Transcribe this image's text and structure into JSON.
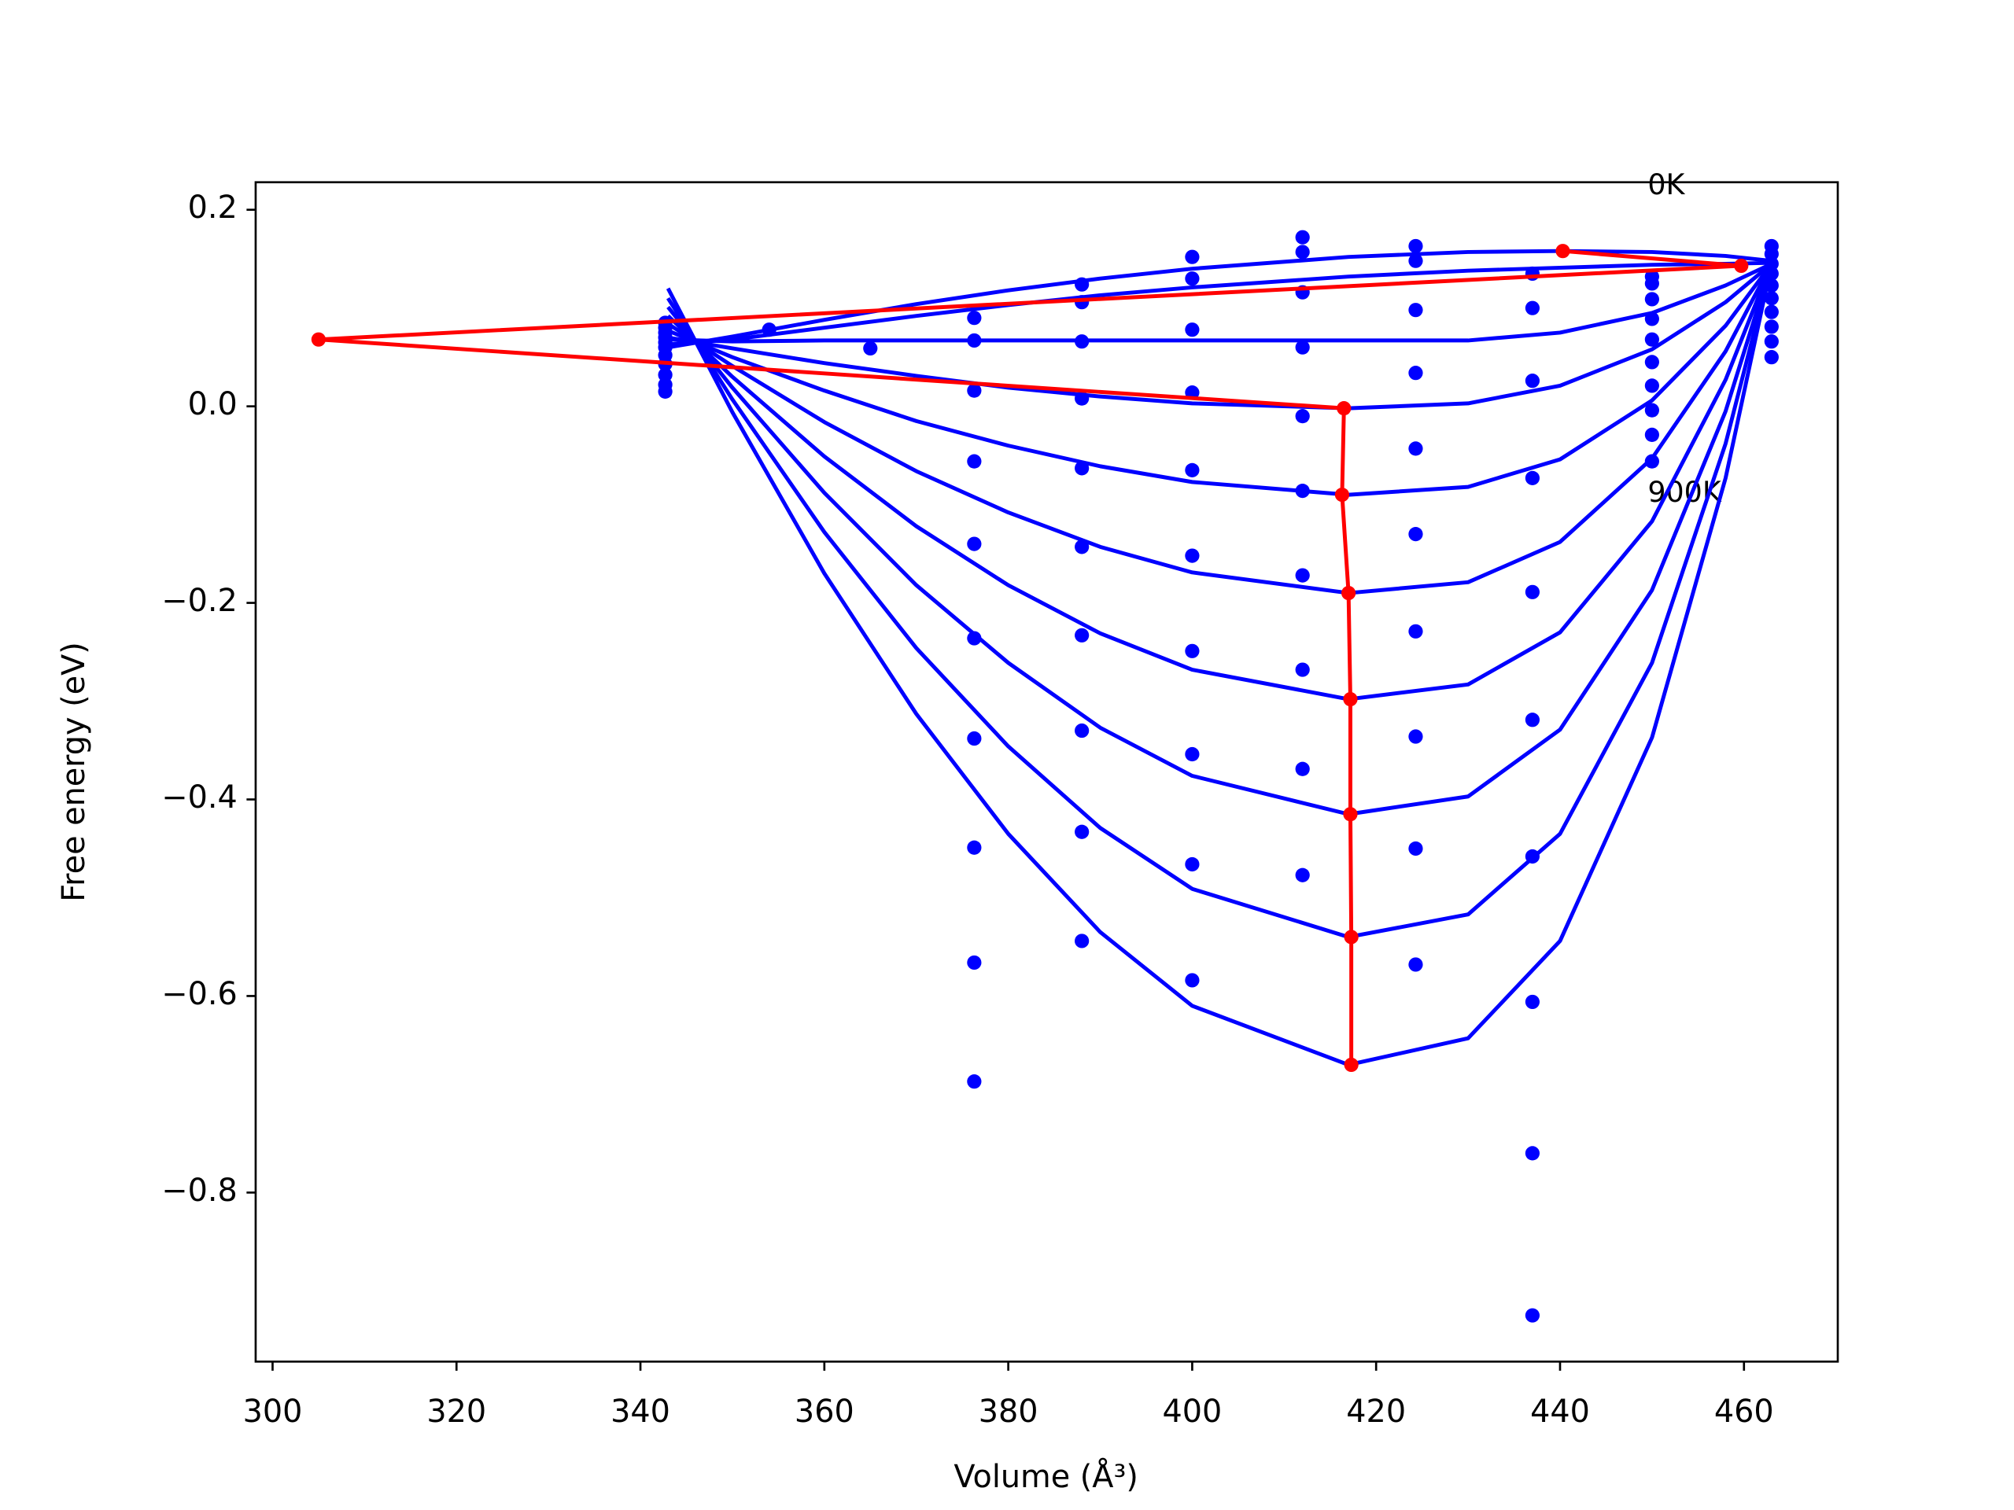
{
  "chart_data": {
    "type": "line",
    "xlabel": "Volume (Å³)",
    "ylabel": "Free energy (eV)",
    "annotations": [
      "0K",
      "900K"
    ],
    "xlim": [
      298.16,
      470.2
    ],
    "ylim": [
      -0.972,
      0.228
    ],
    "xticks": [
      300,
      320,
      340,
      360,
      380,
      400,
      420,
      440,
      460
    ],
    "yticks": [
      0.2,
      {
        "value": 0,
        "label": "0.0"
      },
      {
        "value": -0.2,
        "label": "−0.2"
      },
      {
        "value": -0.4,
        "label": "−0.4"
      },
      {
        "value": -0.6,
        "label": "−0.6"
      },
      {
        "value": -0.8,
        "label": "−0.8"
      }
    ],
    "x": [
      343,
      350,
      360,
      370,
      380,
      390,
      400,
      417,
      430,
      440,
      450,
      458,
      463
    ],
    "series": [
      {
        "kind": "scatter",
        "color": "#0000ff",
        "x": [
          342.7,
          342.7,
          342.7,
          342.7,
          342.7,
          342.7,
          342.7,
          342.7,
          342.7,
          342.7,
          342.7,
          354,
          365,
          376.3,
          376.3,
          376.3,
          376.3,
          376.3,
          376.3,
          376.3,
          376.3,
          376.3,
          376.3,
          388,
          388,
          388,
          388,
          388,
          388,
          388,
          388,
          388,
          388,
          400,
          400,
          400,
          400,
          400,
          400,
          400,
          400,
          400,
          400,
          412,
          412,
          412,
          412,
          412,
          412,
          412,
          412,
          412,
          412,
          424.3,
          424.3,
          424.3,
          424.3,
          424.3,
          424.3,
          424.3,
          424.3,
          424.3,
          424.3,
          437,
          437,
          437,
          437,
          437,
          437,
          437,
          437,
          437,
          437,
          450,
          450,
          450,
          450,
          450,
          450,
          450,
          450,
          450,
          450,
          463,
          463,
          463,
          463,
          463,
          463,
          463,
          463,
          463,
          463
        ],
        "values": [
          0.085,
          0.08,
          0.075,
          0.07,
          0.065,
          0.06,
          0.052,
          0.043,
          0.032,
          0.022,
          0.015,
          0.078,
          0.059,
          0.09,
          0.067,
          0.016,
          -0.056,
          -0.14,
          -0.236,
          -0.338,
          -0.449,
          -0.566,
          -0.687,
          0.124,
          0.106,
          0.066,
          0.008,
          -0.063,
          -0.143,
          -0.233,
          -0.33,
          -0.433,
          -0.544,
          0.152,
          0.13,
          0.078,
          0.014,
          -0.065,
          -0.152,
          -0.249,
          -0.354,
          -0.466,
          -0.584,
          0.172,
          0.157,
          0.116,
          0.06,
          -0.01,
          -0.086,
          -0.172,
          -0.268,
          -0.369,
          -0.477,
          0.163,
          0.148,
          0.098,
          0.034,
          -0.043,
          -0.13,
          -0.229,
          -0.336,
          -0.45,
          -0.568,
          0.135,
          0.1,
          0.026,
          -0.073,
          -0.189,
          -0.319,
          -0.458,
          -0.606,
          -0.76,
          -0.925,
          0.132,
          0.125,
          0.109,
          0.089,
          0.068,
          0.045,
          0.021,
          -0.004,
          -0.029,
          -0.056,
          0.163,
          0.155,
          0.145,
          0.135,
          0.123,
          0.11,
          0.096,
          0.081,
          0.066,
          0.05
        ]
      },
      {
        "kind": "curve",
        "color": "#0000ff",
        "values": [
          0.06,
          0.071,
          0.088,
          0.104,
          0.118,
          0.13,
          0.14,
          0.152,
          0.157,
          0.158,
          0.157,
          0.153,
          0.148
        ]
      },
      {
        "kind": "curve",
        "color": "#0000ff",
        "values": [
          0.063,
          0.068,
          0.08,
          0.092,
          0.103,
          0.113,
          0.121,
          0.132,
          0.138,
          0.141,
          0.144,
          0.145,
          0.146
        ]
      },
      {
        "kind": "curve",
        "color": "#0000ff",
        "values": [
          0.068,
          0.066,
          0.067,
          0.067,
          0.067,
          0.067,
          0.067,
          0.067,
          0.067,
          0.075,
          0.095,
          0.123,
          0.145
        ]
      },
      {
        "kind": "curve",
        "color": "#0000ff",
        "values": [
          0.07,
          0.059,
          0.044,
          0.031,
          0.019,
          0.01,
          0.003,
          -0.002,
          0.003,
          0.021,
          0.058,
          0.106,
          0.145
        ]
      },
      {
        "kind": "curve",
        "color": "#0000ff",
        "values": [
          0.077,
          0.05,
          0.016,
          -0.015,
          -0.04,
          -0.061,
          -0.077,
          -0.09,
          -0.082,
          -0.054,
          0.006,
          0.082,
          0.145
        ]
      },
      {
        "kind": "curve",
        "color": "#0000ff",
        "values": [
          0.084,
          0.041,
          -0.016,
          -0.066,
          -0.108,
          -0.143,
          -0.169,
          -0.19,
          -0.179,
          -0.138,
          -0.053,
          0.056,
          0.145
        ]
      },
      {
        "kind": "curve",
        "color": "#0000ff",
        "values": [
          0.092,
          0.03,
          -0.051,
          -0.122,
          -0.182,
          -0.231,
          -0.268,
          -0.298,
          -0.283,
          -0.23,
          -0.117,
          0.027,
          0.145
        ]
      },
      {
        "kind": "curve",
        "color": "#0000ff",
        "values": [
          0.101,
          0.019,
          -0.088,
          -0.182,
          -0.261,
          -0.327,
          -0.376,
          -0.415,
          -0.397,
          -0.329,
          -0.187,
          -0.005,
          0.145
        ]
      },
      {
        "kind": "curve",
        "color": "#0000ff",
        "values": [
          0.11,
          0.007,
          -0.128,
          -0.246,
          -0.346,
          -0.429,
          -0.491,
          -0.54,
          -0.517,
          -0.435,
          -0.261,
          -0.038,
          0.145
        ]
      },
      {
        "kind": "curve",
        "color": "#0000ff",
        "values": [
          0.12,
          -0.006,
          -0.17,
          -0.313,
          -0.435,
          -0.535,
          -0.61,
          -0.67,
          -0.643,
          -0.544,
          -0.337,
          -0.073,
          0.145
        ]
      },
      {
        "kind": "line-markers",
        "color": "#ff0000",
        "x": [
          440.3,
          459.7,
          305,
          416.5,
          416.3,
          417,
          417.2,
          417.2,
          417.3,
          417.3
        ],
        "values": [
          0.158,
          0.143,
          0.068,
          -0.002,
          -0.09,
          -0.19,
          -0.298,
          -0.415,
          -0.54,
          -0.67
        ]
      }
    ]
  }
}
